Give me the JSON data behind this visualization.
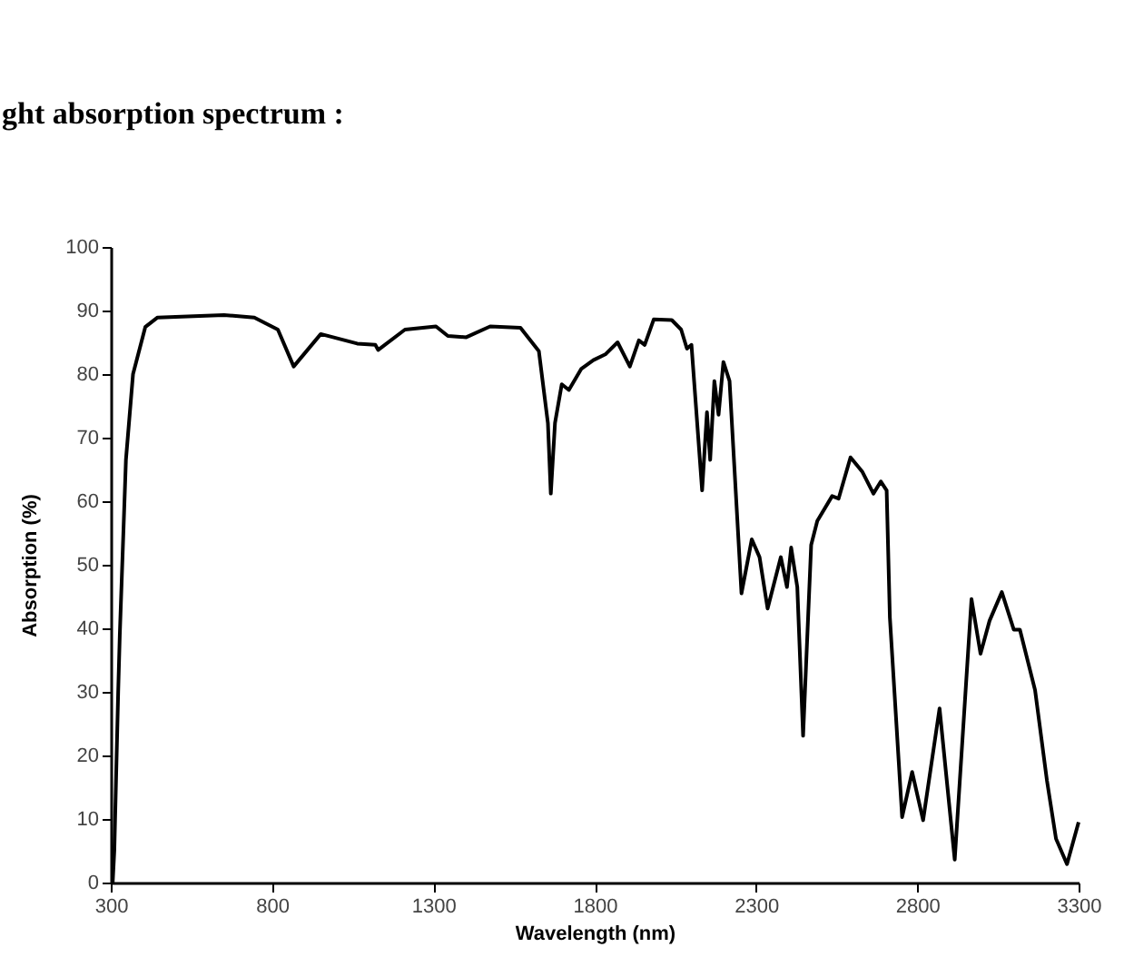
{
  "chart_data": {
    "type": "line",
    "title": "ght absorption spectrum :",
    "xlabel": "Wavelength (nm)",
    "ylabel": "Absorption (%)",
    "x": [
      306,
      311,
      323,
      328,
      347,
      369,
      407,
      445,
      557,
      651,
      745,
      818,
      867,
      951,
      1064,
      1120,
      1129,
      1212,
      1308,
      1345,
      1402,
      1476,
      1570,
      1627,
      1655,
      1664,
      1677,
      1698,
      1720,
      1758,
      1796,
      1833,
      1871,
      1909,
      1937,
      1955,
      1983,
      2039,
      2068,
      2086,
      2100,
      2133,
      2148,
      2158,
      2171,
      2184,
      2199,
      2218,
      2255,
      2287,
      2311,
      2336,
      2377,
      2396,
      2409,
      2428,
      2446,
      2471,
      2490,
      2536,
      2556,
      2593,
      2630,
      2664,
      2687,
      2705,
      2715,
      2753,
      2784,
      2818,
      2869,
      2916,
      2968,
      2996,
      3024,
      3062,
      3099,
      3118,
      3165,
      3202,
      3230,
      3264,
      3300
    ],
    "series": [
      {
        "color": "#000000",
        "values": [
          0,
          5,
          30,
          39,
          66.5,
          80,
          87.4,
          88.9,
          89.1,
          89.3,
          88.9,
          87,
          81.2,
          86.3,
          84.8,
          84.6,
          83.8,
          87,
          87.5,
          86,
          85.8,
          87.5,
          87.3,
          83.6,
          72.3,
          61.2,
          72.3,
          78.4,
          77.5,
          80.8,
          82.2,
          83.1,
          85,
          81.2,
          85.3,
          84.6,
          88.6,
          88.5,
          87,
          84,
          84.6,
          61.7,
          74,
          66.5,
          78.9,
          73.6,
          81.9,
          78.9,
          45.5,
          54,
          51.2,
          43.1,
          51.2,
          46.5,
          52.7,
          46.5,
          23.1,
          53.1,
          56.9,
          60.8,
          60.4,
          66.9,
          64.6,
          61.2,
          63.1,
          61.7,
          41.7,
          10.3,
          17.4,
          9.8,
          27.4,
          3.6,
          44.6,
          36,
          41.2,
          45.7,
          39.8,
          39.8,
          30.3,
          16,
          6.9,
          2.9,
          9.5
        ]
      }
    ],
    "xlim": [
      300,
      3300
    ],
    "ylim": [
      0,
      100
    ],
    "xticks": [
      300,
      800,
      1300,
      1800,
      2300,
      2800,
      3300
    ],
    "yticks": [
      0,
      10,
      20,
      30,
      40,
      50,
      60,
      70,
      80,
      90,
      100
    ],
    "grid": false,
    "marker": "none",
    "line_style": "solid"
  }
}
